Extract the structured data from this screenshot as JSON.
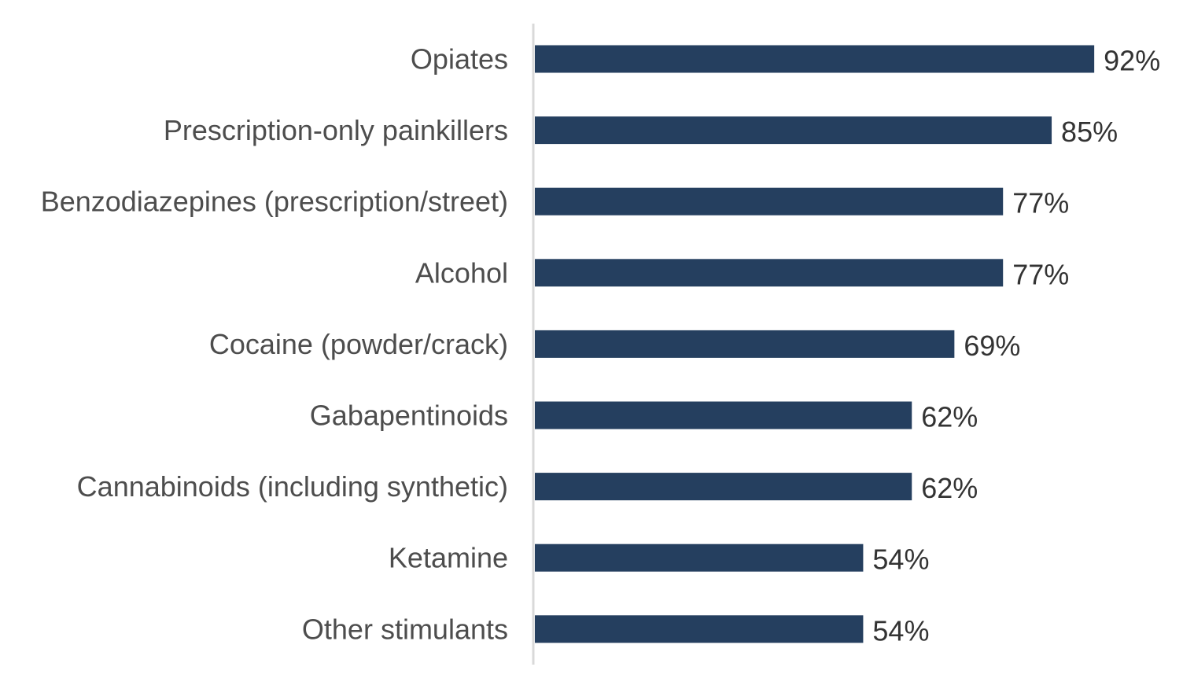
{
  "chart_data": {
    "type": "bar",
    "orientation": "horizontal",
    "categories": [
      "Opiates",
      "Prescription-only painkillers",
      "Benzodiazepines (prescription/street)",
      "Alcohol",
      "Cocaine (powder/crack)",
      "Gabapentinoids",
      "Cannabinoids (including synthetic)",
      "Ketamine",
      "Other stimulants"
    ],
    "values": [
      92,
      85,
      77,
      77,
      69,
      62,
      62,
      54,
      54
    ],
    "value_labels": [
      "92%",
      "85%",
      "77%",
      "77%",
      "69%",
      "62%",
      "62%",
      "54%",
      "54%"
    ],
    "title": "",
    "xlabel": "",
    "ylabel": "",
    "xlim": [
      0,
      100
    ],
    "grid": false,
    "legend": "none",
    "colors": {
      "bar": "#253f5f",
      "axis": "#d9d9d9"
    }
  }
}
